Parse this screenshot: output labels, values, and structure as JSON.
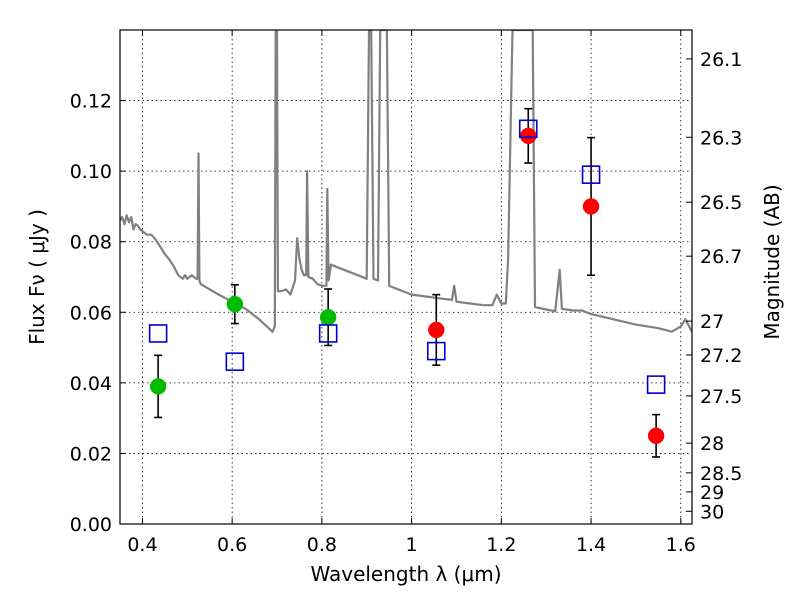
{
  "chart_data": {
    "type": "scatter",
    "title": "",
    "xlabel": "Wavelength  λ (μm)",
    "ylabel": "Flux  Fν  ( μJy )",
    "y2label": "Magnitude (AB)",
    "xlim": [
      0.35,
      1.625
    ],
    "ylim": [
      0.0,
      0.14
    ],
    "grid": true,
    "x_ticks": [
      0.4,
      0.6,
      0.8,
      1.0,
      1.2,
      1.4,
      1.6
    ],
    "x_tick_labels": [
      "0.4",
      "0.6",
      "0.8",
      "1",
      "1.2",
      "1.4",
      "1.6"
    ],
    "y_ticks": [
      0.0,
      0.02,
      0.04,
      0.06,
      0.08,
      0.1,
      0.12
    ],
    "y_tick_labels": [
      "0.00",
      "0.02",
      "0.04",
      "0.06",
      "0.08",
      "0.10",
      "0.12"
    ],
    "y2_ticks": [
      {
        "label": "26.1",
        "flux": 0.1318
      },
      {
        "label": "26.3",
        "flux": 0.1096
      },
      {
        "label": "26.5",
        "flux": 0.0912
      },
      {
        "label": "26.7",
        "flux": 0.0759
      },
      {
        "label": "27",
        "flux": 0.0575
      },
      {
        "label": "27.2",
        "flux": 0.0479
      },
      {
        "label": "27.5",
        "flux": 0.0363
      },
      {
        "label": "28",
        "flux": 0.0229
      },
      {
        "label": "28.5",
        "flux": 0.0145
      },
      {
        "label": "29",
        "flux": 0.0091
      },
      {
        "label": "30",
        "flux": 0.0036
      }
    ],
    "colors": {
      "green": "#00bb00",
      "red": "#ff0000",
      "blue": "#0000cc",
      "model": "#808080",
      "errorbar": "#000000"
    },
    "series": [
      {
        "marker": "circle",
        "color": "green",
        "points": [
          {
            "x": 0.435,
            "y": 0.039,
            "err": 0.0088
          },
          {
            "x": 0.606,
            "y": 0.0623,
            "err": 0.0055
          },
          {
            "x": 0.814,
            "y": 0.0586,
            "err": 0.008
          }
        ]
      },
      {
        "marker": "circle",
        "color": "red",
        "points": [
          {
            "x": 1.055,
            "y": 0.055,
            "err": 0.01
          },
          {
            "x": 1.26,
            "y": 0.11,
            "err": 0.0077
          },
          {
            "x": 1.4,
            "y": 0.09,
            "err": 0.0195
          },
          {
            "x": 1.545,
            "y": 0.025,
            "err": 0.006
          }
        ]
      },
      {
        "marker": "square",
        "color": "blue",
        "points": [
          {
            "x": 0.435,
            "y": 0.054
          },
          {
            "x": 0.606,
            "y": 0.046
          },
          {
            "x": 0.814,
            "y": 0.054
          },
          {
            "x": 1.055,
            "y": 0.049
          },
          {
            "x": 1.26,
            "y": 0.112
          },
          {
            "x": 1.4,
            "y": 0.099
          },
          {
            "x": 1.545,
            "y": 0.0395
          }
        ]
      }
    ],
    "model_spectrum": [
      [
        0.35,
        0.086
      ],
      [
        0.355,
        0.087
      ],
      [
        0.36,
        0.085
      ],
      [
        0.365,
        0.0875
      ],
      [
        0.37,
        0.0855
      ],
      [
        0.375,
        0.087
      ],
      [
        0.38,
        0.0835
      ],
      [
        0.385,
        0.085
      ],
      [
        0.39,
        0.0845
      ],
      [
        0.395,
        0.0835
      ],
      [
        0.4,
        0.083
      ],
      [
        0.41,
        0.082
      ],
      [
        0.42,
        0.082
      ],
      [
        0.43,
        0.0805
      ],
      [
        0.44,
        0.0785
      ],
      [
        0.45,
        0.0765
      ],
      [
        0.46,
        0.075
      ],
      [
        0.47,
        0.073
      ],
      [
        0.48,
        0.0705
      ],
      [
        0.49,
        0.0695
      ],
      [
        0.495,
        0.0705
      ],
      [
        0.5,
        0.0695
      ],
      [
        0.51,
        0.0705
      ],
      [
        0.52,
        0.0695
      ],
      [
        0.523,
        0.0695
      ],
      [
        0.525,
        0.105
      ],
      [
        0.527,
        0.069
      ],
      [
        0.53,
        0.068
      ],
      [
        0.55,
        0.0665
      ],
      [
        0.57,
        0.065
      ],
      [
        0.6,
        0.063
      ],
      [
        0.63,
        0.061
      ],
      [
        0.66,
        0.058
      ],
      [
        0.69,
        0.0545
      ],
      [
        0.695,
        0.056
      ],
      [
        0.697,
        0.14
      ],
      [
        0.7,
        0.14
      ],
      [
        0.702,
        0.066
      ],
      [
        0.71,
        0.066
      ],
      [
        0.72,
        0.0665
      ],
      [
        0.73,
        0.065
      ],
      [
        0.74,
        0.069
      ],
      [
        0.745,
        0.081
      ],
      [
        0.75,
        0.075
      ],
      [
        0.755,
        0.072
      ],
      [
        0.76,
        0.0705
      ],
      [
        0.765,
        0.0705
      ],
      [
        0.767,
        0.1
      ],
      [
        0.77,
        0.07
      ],
      [
        0.78,
        0.0695
      ],
      [
        0.79,
        0.068
      ],
      [
        0.8,
        0.0675
      ],
      [
        0.81,
        0.0675
      ],
      [
        0.812,
        0.095
      ],
      [
        0.815,
        0.069
      ],
      [
        0.82,
        0.0735
      ],
      [
        0.84,
        0.0725
      ],
      [
        0.86,
        0.0715
      ],
      [
        0.88,
        0.0705
      ],
      [
        0.9,
        0.0695
      ],
      [
        0.905,
        0.14
      ],
      [
        0.91,
        0.14
      ],
      [
        0.915,
        0.0695
      ],
      [
        0.925,
        0.069
      ],
      [
        0.93,
        0.14
      ],
      [
        0.945,
        0.14
      ],
      [
        0.95,
        0.0675
      ],
      [
        0.97,
        0.0665
      ],
      [
        1.0,
        0.065
      ],
      [
        1.03,
        0.0645
      ],
      [
        1.06,
        0.064
      ],
      [
        1.09,
        0.0635
      ],
      [
        1.095,
        0.0675
      ],
      [
        1.1,
        0.063
      ],
      [
        1.13,
        0.0625
      ],
      [
        1.16,
        0.062
      ],
      [
        1.18,
        0.062
      ],
      [
        1.19,
        0.065
      ],
      [
        1.2,
        0.0625
      ],
      [
        1.21,
        0.0625
      ],
      [
        1.215,
        0.075
      ],
      [
        1.225,
        0.14
      ],
      [
        1.235,
        0.14
      ],
      [
        1.25,
        0.14
      ],
      [
        1.27,
        0.14
      ],
      [
        1.275,
        0.0615
      ],
      [
        1.3,
        0.0608
      ],
      [
        1.32,
        0.0603
      ],
      [
        1.33,
        0.072
      ],
      [
        1.335,
        0.061
      ],
      [
        1.36,
        0.0605
      ],
      [
        1.38,
        0.0605
      ],
      [
        1.4,
        0.0595
      ],
      [
        1.45,
        0.058
      ],
      [
        1.5,
        0.0565
      ],
      [
        1.55,
        0.0555
      ],
      [
        1.58,
        0.0545
      ],
      [
        1.6,
        0.056
      ],
      [
        1.61,
        0.058
      ],
      [
        1.625,
        0.0545
      ]
    ]
  }
}
